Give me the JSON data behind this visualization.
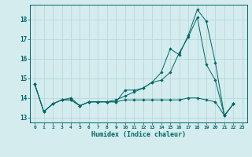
{
  "title": "",
  "xlabel": "Humidex (Indice chaleur)",
  "ylabel": "",
  "bg_color": "#d4ecee",
  "line_color": "#006666",
  "grid_color": "#b8d8dc",
  "xlim": [
    -0.5,
    23.5
  ],
  "ylim": [
    12.75,
    18.75
  ],
  "yticks": [
    13,
    14,
    15,
    16,
    17,
    18
  ],
  "xticks": [
    0,
    1,
    2,
    3,
    4,
    5,
    6,
    7,
    8,
    9,
    10,
    11,
    12,
    13,
    14,
    15,
    16,
    17,
    18,
    19,
    20,
    21,
    22,
    23
  ],
  "line1_y": [
    14.7,
    13.3,
    13.7,
    13.9,
    13.9,
    13.6,
    13.8,
    13.8,
    13.8,
    13.8,
    14.4,
    14.4,
    14.5,
    14.8,
    14.9,
    15.3,
    16.3,
    17.1,
    18.1,
    15.7,
    14.9,
    13.1,
    13.7,
    null
  ],
  "line2_y": [
    14.7,
    13.3,
    13.7,
    13.9,
    14.0,
    13.6,
    13.8,
    13.8,
    13.8,
    13.9,
    14.1,
    14.3,
    14.5,
    14.8,
    15.3,
    16.5,
    16.2,
    17.2,
    18.5,
    17.9,
    15.8,
    13.1,
    13.7,
    null
  ],
  "line3_y": [
    14.7,
    13.3,
    13.7,
    13.9,
    13.9,
    13.6,
    13.8,
    13.8,
    13.8,
    13.8,
    13.9,
    13.9,
    13.9,
    13.9,
    13.9,
    13.9,
    13.9,
    14.0,
    14.0,
    13.9,
    13.8,
    13.1,
    13.7,
    null
  ]
}
